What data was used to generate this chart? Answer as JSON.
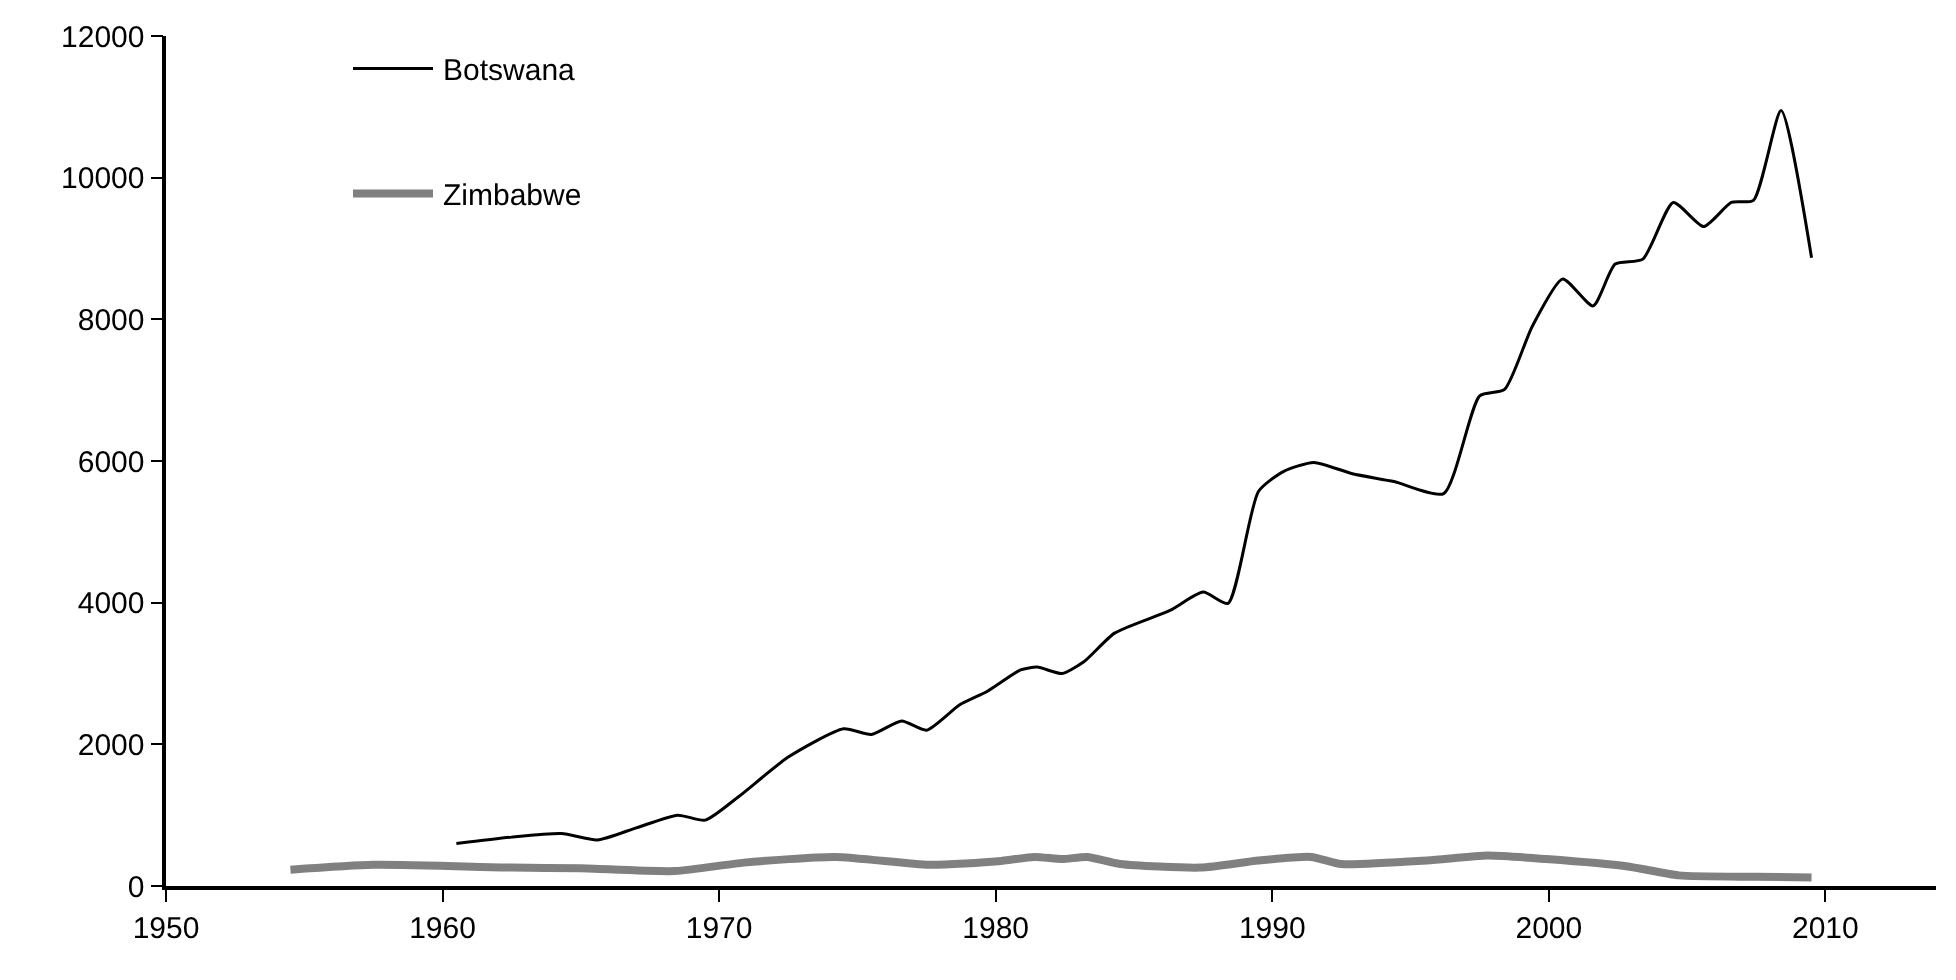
{
  "chart_data": {
    "type": "line",
    "xlim": [
      1950,
      2014
    ],
    "xticks": [
      1950,
      1960,
      1970,
      1980,
      1990,
      2000,
      2010
    ],
    "ylim": [
      0,
      12000
    ],
    "yticks": [
      0,
      2000,
      4000,
      6000,
      8000,
      10000,
      12000
    ],
    "legend": "top left",
    "marker": "none",
    "line_style": "solid",
    "series": [
      {
        "name": "Botswana",
        "color": "#000000",
        "x": [
          1960.5,
          1962.5,
          1964.3,
          1965.6,
          1967.0,
          1968.5,
          1969.5,
          1970.7,
          1972.5,
          1974.5,
          1975.5,
          1976.6,
          1977.5,
          1978.7,
          1979.7,
          1980.9,
          1981.5,
          1982.4,
          1983.2,
          1984.3,
          1986.3,
          1987.5,
          1988.4,
          1989.5,
          1990.4,
          1991.5,
          1992.9,
          1994.4,
          1996.2,
          1997.5,
          1998.4,
          1999.4,
          2000.5,
          2001.6,
          2002.4,
          2003.4,
          2004.5,
          2005.6,
          2006.6,
          2007.4,
          2008.4,
          2009.5
        ],
        "values": [
          600,
          690,
          740,
          650,
          820,
          1000,
          930,
          1260,
          1820,
          2220,
          2140,
          2330,
          2200,
          2560,
          2750,
          3050,
          3090,
          3000,
          3170,
          3570,
          3890,
          4150,
          3990,
          5570,
          5850,
          5980,
          5820,
          5710,
          5540,
          6920,
          7010,
          7900,
          8570,
          8190,
          8780,
          8850,
          9650,
          9310,
          9650,
          9680,
          10950,
          8870
        ]
      },
      {
        "name": "Zimbabwe",
        "color": "#808080",
        "x": [
          1954.5,
          1957.5,
          1962.5,
          1965,
          1968.4,
          1970.9,
          1974.2,
          1977.6,
          1980.1,
          1981.4,
          1982.4,
          1983.3,
          1984.5,
          1987.4,
          1989.5,
          1991.4,
          1992.5,
          1995.6,
          1997.8,
          1999.9,
          2002.8,
          2004.7,
          2007.5,
          2009.5
        ],
        "values": [
          230,
          300,
          260,
          250,
          210,
          330,
          410,
          300,
          350,
          410,
          380,
          410,
          310,
          260,
          360,
          410,
          310,
          360,
          430,
          380,
          280,
          150,
          130,
          120
        ]
      }
    ]
  }
}
